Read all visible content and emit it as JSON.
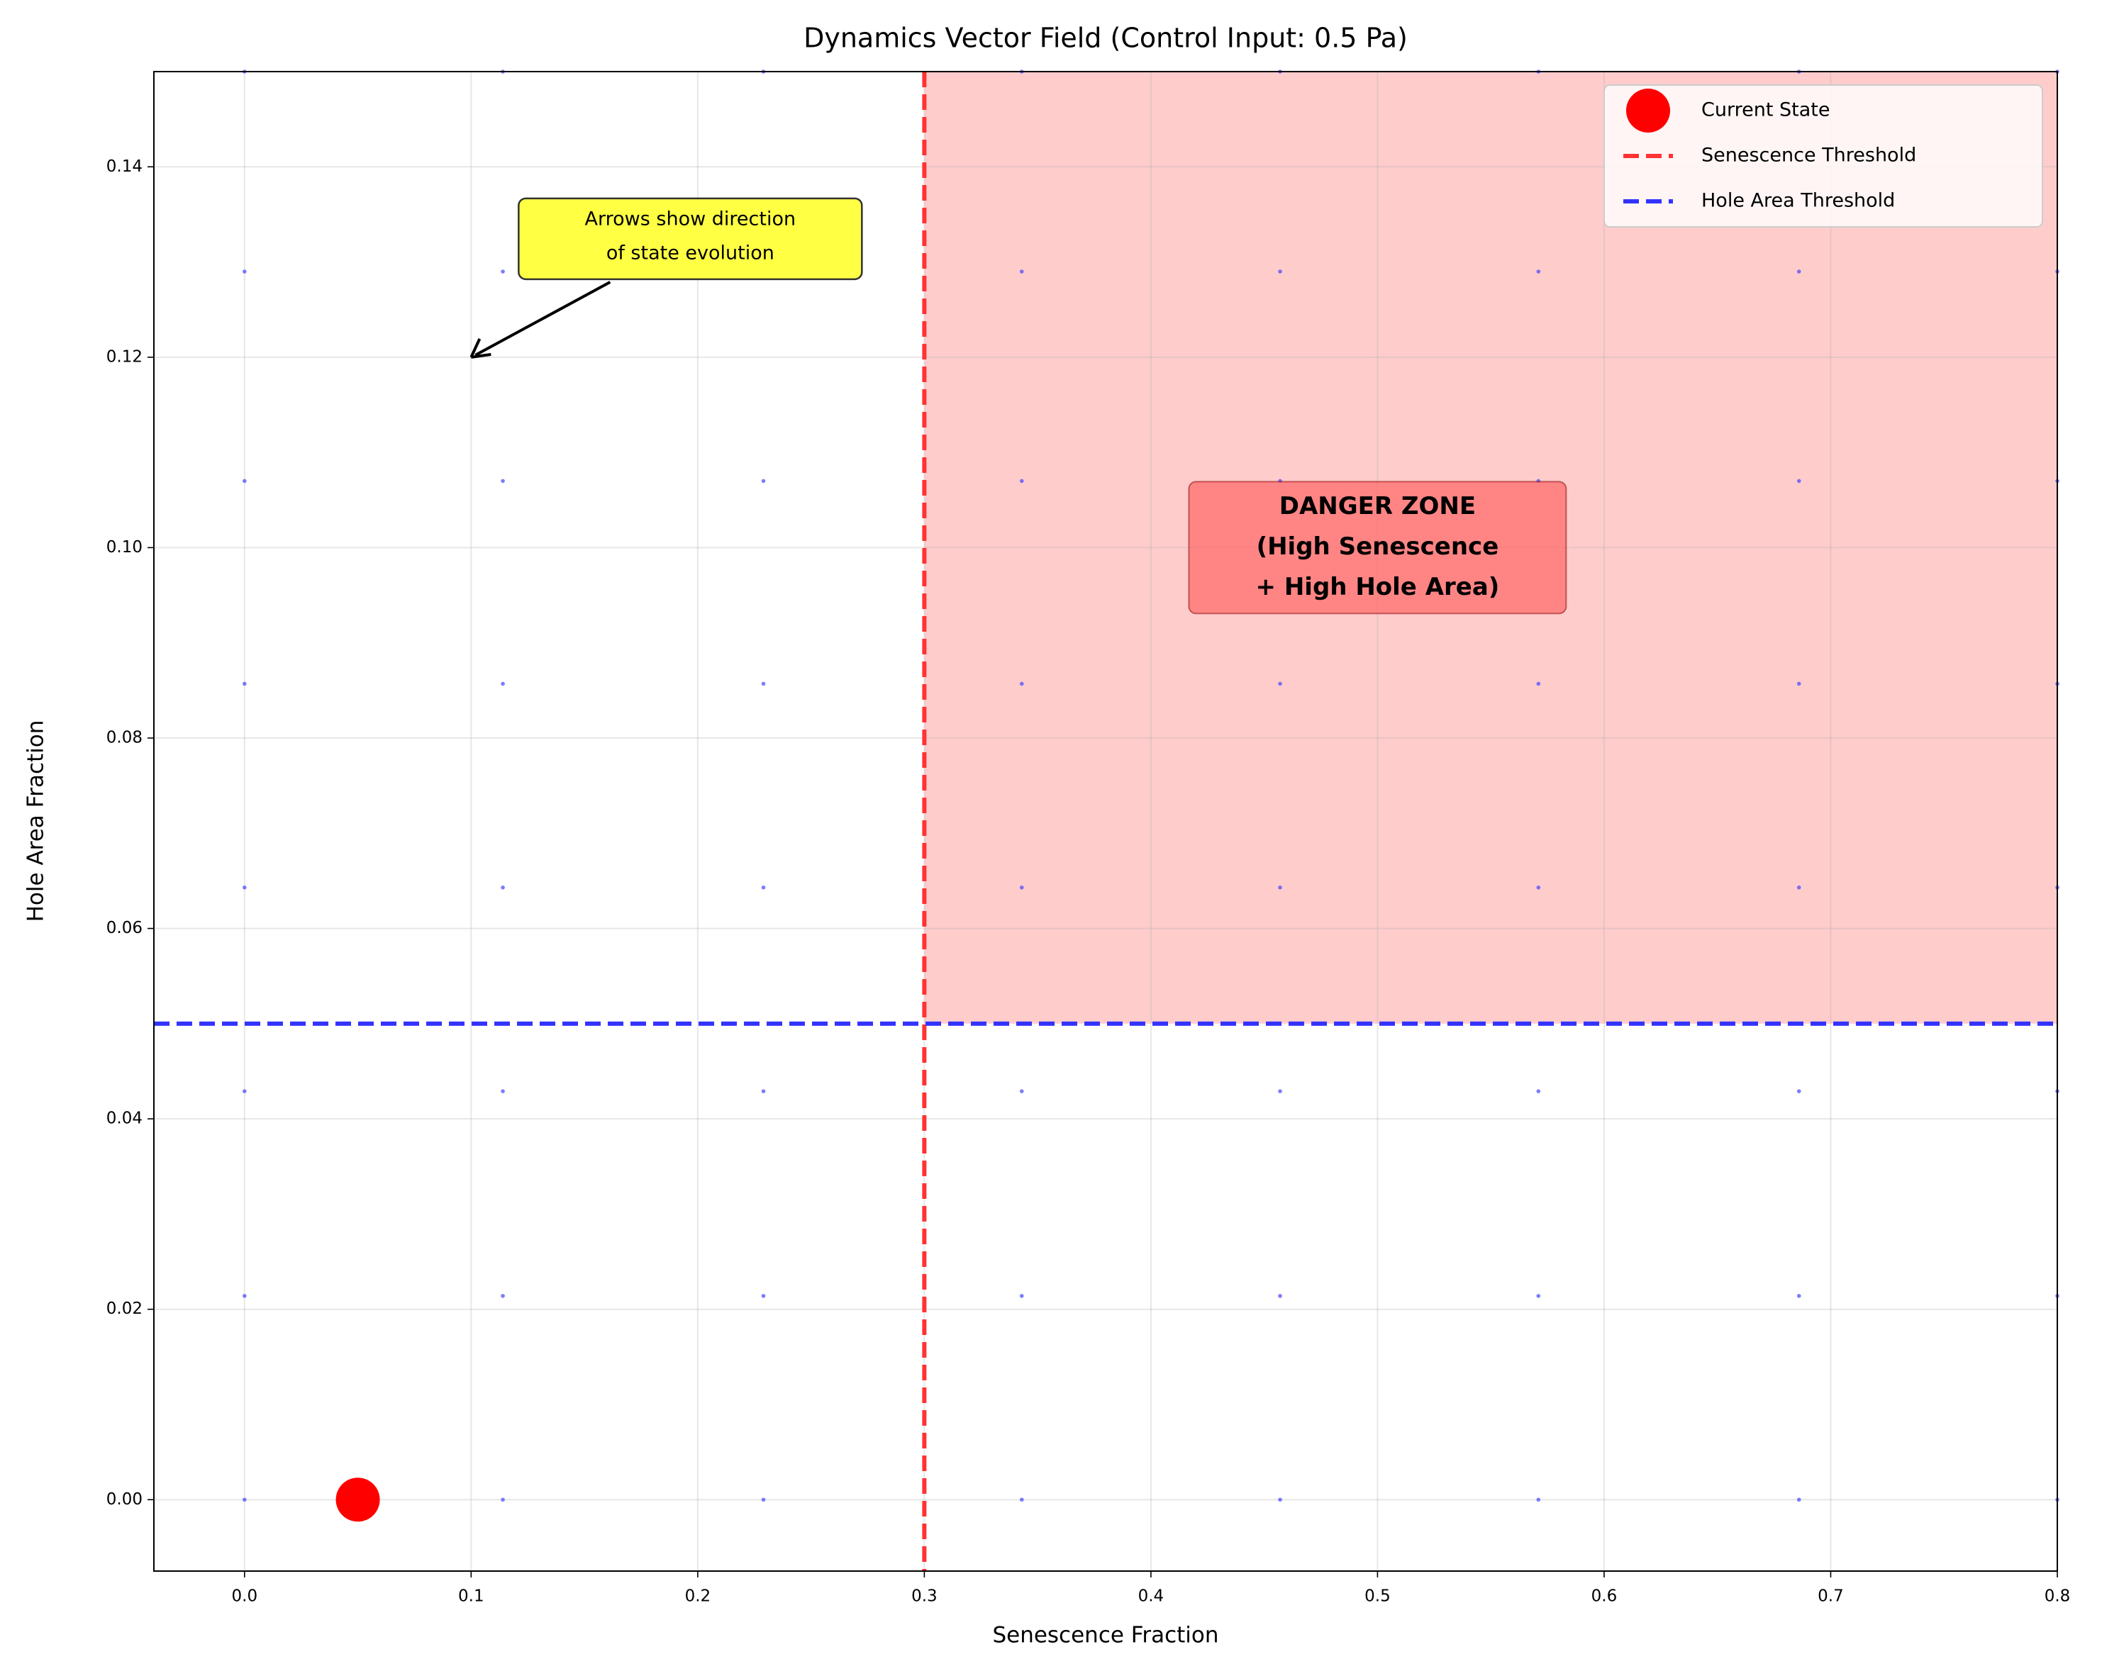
{
  "chart_data": {
    "type": "quiver",
    "title": "Dynamics Vector Field (Control Input: 0.5 Pa)",
    "x_label": "Senescence Fraction",
    "y_label": "Hole Area Fraction",
    "xlim": [
      -0.04,
      0.8
    ],
    "ylim": [
      -0.0075,
      0.15
    ],
    "xticks": [
      {
        "value": 0,
        "label": "0.0"
      },
      0.1,
      0.2,
      0.3,
      0.4,
      0.5,
      0.6,
      0.7,
      0.8
    ],
    "yticks": [
      {
        "value": 0,
        "label": "0.00"
      },
      {
        "value": 0.02,
        "label": "0.02"
      },
      {
        "value": 0.04,
        "label": "0.04"
      },
      {
        "value": 0.06,
        "label": "0.06"
      },
      {
        "value": 0.08,
        "label": "0.08"
      },
      {
        "value": 0.1,
        "label": "0.10"
      },
      {
        "value": 0.12,
        "label": "0.12"
      },
      {
        "value": 0.14,
        "label": "0.14"
      }
    ],
    "grid": true,
    "legend": "upper right",
    "field": {
      "x": [
        0,
        0.114,
        0.229,
        0.343,
        0.457,
        0.571,
        0.686,
        0.8
      ],
      "y": [
        0,
        0.0214,
        0.0429,
        0.0643,
        0.0857,
        0.107,
        0.129,
        0.15
      ],
      "color": "#4444ff"
    },
    "current_state": {
      "name": "Current State",
      "x": 0.05,
      "y": 0,
      "color": "#ff0000"
    },
    "thresholds": [
      {
        "name": "Senescence Threshold",
        "axis": "x",
        "value": 0.3,
        "color": "#ff3333"
      },
      {
        "name": "Hole Area Threshold",
        "axis": "y",
        "value": 0.05,
        "color": "#3333ff"
      }
    ],
    "danger_zone": {
      "label": [
        "DANGER ZONE",
        "(High Senescence",
        "+ High Hole Area)"
      ],
      "x": 0.3,
      "y": 0.05,
      "label_x": 0.5,
      "label_y": 0.1,
      "color": "#ffcccc"
    },
    "annotation": {
      "text": [
        "Arrows show direction",
        "of state evolution"
      ],
      "x": 0.1,
      "y": 0.12
    }
  }
}
